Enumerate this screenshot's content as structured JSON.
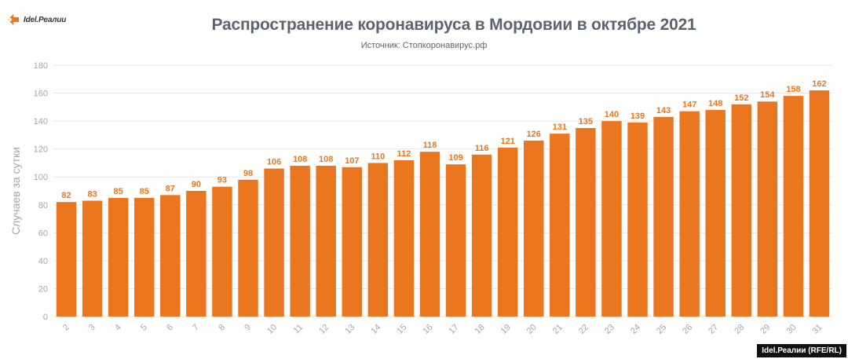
{
  "header": {
    "logo_text": "Idel.Реалии",
    "title": "Распространение коронавируса в Мордовии в октябре 2021",
    "subtitle": "Источник: Стопкоронавирус.рф"
  },
  "footer": {
    "credit": "Idel.Реалии (RFE/RL)"
  },
  "colors": {
    "bar": "#ea7720",
    "label": "#ea7720",
    "grid": "#e6e6e6",
    "axis_text": "#a6a6a6"
  },
  "chart_data": {
    "type": "bar",
    "title": "Распространение коронавируса в Мордовии в октябре 2021",
    "subtitle": "Источник: Стопкоронавирус.рф",
    "xlabel": "",
    "ylabel": "Случаев за сутки",
    "ylim": [
      0,
      180
    ],
    "yticks": [
      0,
      20,
      40,
      60,
      80,
      100,
      120,
      140,
      160,
      180
    ],
    "grid": true,
    "categories": [
      "2",
      "3",
      "4",
      "5",
      "6",
      "7",
      "8",
      "9",
      "10",
      "11",
      "12",
      "13",
      "14",
      "15",
      "16",
      "17",
      "18",
      "19",
      "20",
      "21",
      "22",
      "23",
      "24",
      "25",
      "26",
      "27",
      "28",
      "29",
      "30",
      "31"
    ],
    "values": [
      82,
      83,
      85,
      85,
      87,
      90,
      93,
      98,
      106,
      108,
      108,
      107,
      110,
      112,
      118,
      109,
      116,
      121,
      126,
      131,
      135,
      140,
      139,
      143,
      147,
      148,
      152,
      154,
      158,
      162
    ]
  }
}
